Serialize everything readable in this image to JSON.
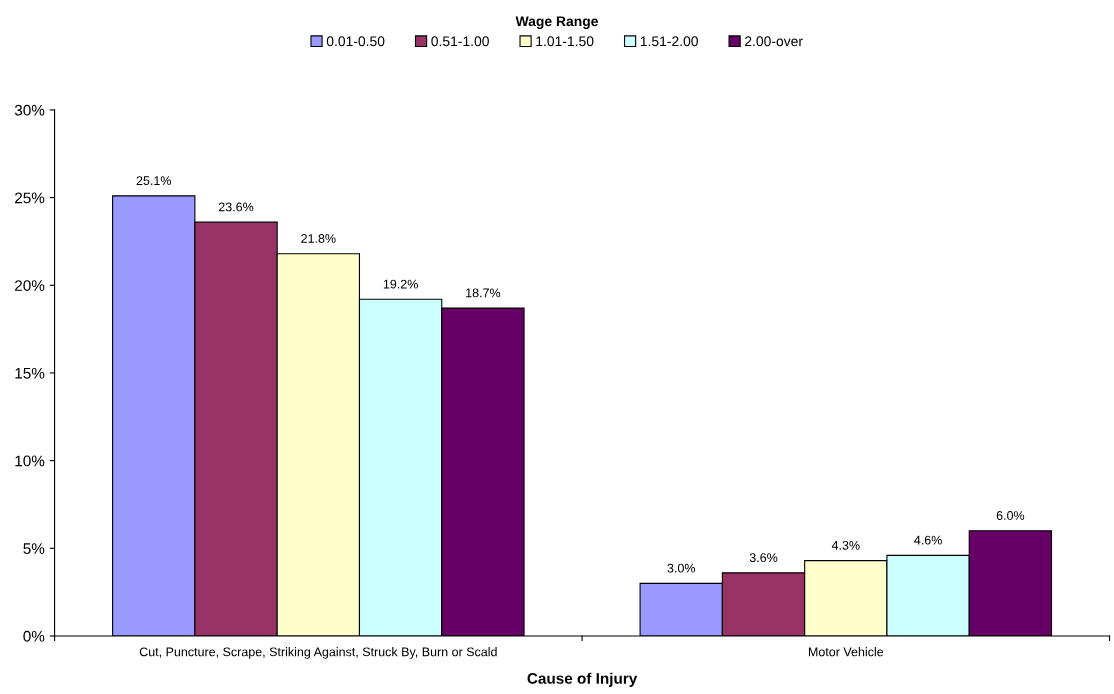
{
  "chart_data": {
    "type": "bar",
    "xlabel": "Cause of Injury",
    "legend_title": "Wage Range",
    "legend": "top",
    "categories": [
      "Cut, Puncture, Scrape, Striking Against, Struck By, Burn or Scald",
      "Motor Vehicle"
    ],
    "series": [
      {
        "name": "0.01-0.50",
        "color": "#9999ff",
        "values": [
          25.1,
          3.0
        ],
        "value_labels": [
          "25.1%",
          "3.0%"
        ]
      },
      {
        "name": "0.51-1.00",
        "color": "#993366",
        "values": [
          23.6,
          3.6
        ],
        "value_labels": [
          "23.6%",
          "3.6%"
        ]
      },
      {
        "name": "1.01-1.50",
        "color": "#ffffcc",
        "values": [
          21.8,
          4.3
        ],
        "value_labels": [
          "21.8%",
          "4.3%"
        ]
      },
      {
        "name": "1.51-2.00",
        "color": "#ccffff",
        "values": [
          19.2,
          4.6
        ],
        "value_labels": [
          "19.2%",
          "4.6%"
        ]
      },
      {
        "name": "2.00-over",
        "color": "#660066",
        "values": [
          18.7,
          6.0
        ],
        "value_labels": [
          "18.7%",
          "6.0%"
        ]
      }
    ],
    "ylim": [
      0,
      30
    ],
    "yticks": [
      {
        "value": 0,
        "label": "0%"
      },
      {
        "value": 5,
        "label": "5%"
      },
      {
        "value": 10,
        "label": "10%"
      },
      {
        "value": 15,
        "label": "15%"
      },
      {
        "value": 20,
        "label": "20%"
      },
      {
        "value": 25,
        "label": "25%"
      },
      {
        "value": 30,
        "label": "30%"
      }
    ],
    "grid": false
  }
}
